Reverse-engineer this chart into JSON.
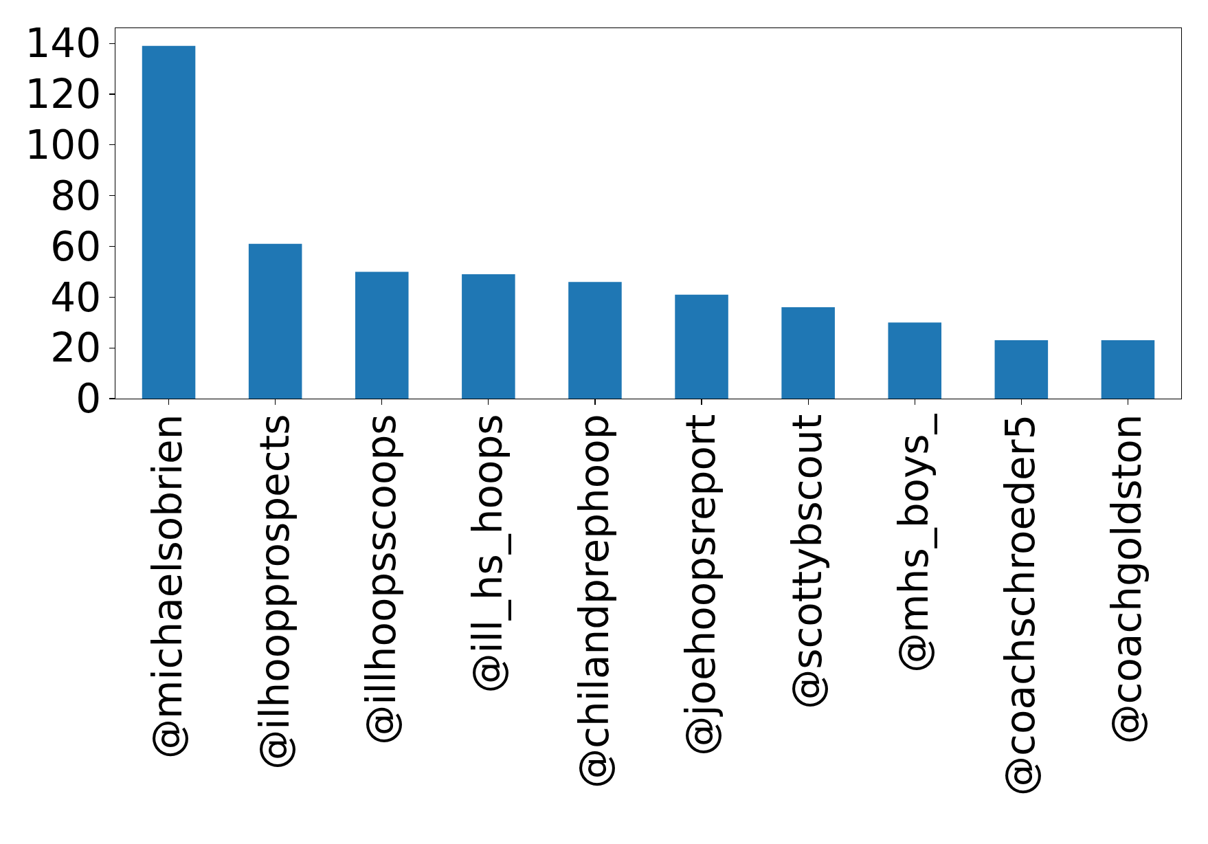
{
  "chart_data": {
    "type": "bar",
    "categories": [
      "@michaelsobrien",
      "@ilhoopprospects",
      "@illhoopsscoops",
      "@ill_hs_hoops",
      "@chilandprephoop",
      "@joehoopsreport",
      "@scottybscout",
      "@mhs_boys_",
      "@coachschroeder5",
      "@coachgoldston"
    ],
    "values": [
      139,
      61,
      50,
      49,
      46,
      41,
      36,
      30,
      23,
      23
    ],
    "color": "#1f77b4",
    "ylim": [
      0,
      146
    ],
    "yticks": [
      0,
      20,
      40,
      60,
      80,
      100,
      120,
      140
    ]
  }
}
